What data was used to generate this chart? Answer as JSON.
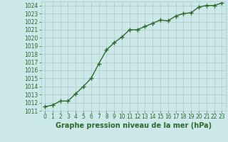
{
  "x": [
    0,
    1,
    2,
    3,
    4,
    5,
    6,
    7,
    8,
    9,
    10,
    11,
    12,
    13,
    14,
    15,
    16,
    17,
    18,
    19,
    20,
    21,
    22,
    23
  ],
  "y": [
    1011.5,
    1011.7,
    1012.2,
    1012.2,
    1013.1,
    1014.0,
    1015.0,
    1016.8,
    1018.5,
    1019.4,
    1020.1,
    1021.0,
    1021.0,
    1021.4,
    1021.8,
    1022.2,
    1022.1,
    1022.7,
    1023.0,
    1023.1,
    1023.8,
    1024.0,
    1024.0,
    1024.3
  ],
  "ylim_min": 1011,
  "ylim_max": 1024.5,
  "xlim_min": -0.5,
  "xlim_max": 23.5,
  "yticks": [
    1011,
    1012,
    1013,
    1014,
    1015,
    1016,
    1017,
    1018,
    1019,
    1020,
    1021,
    1022,
    1023,
    1024
  ],
  "xticks": [
    0,
    1,
    2,
    3,
    4,
    5,
    6,
    7,
    8,
    9,
    10,
    11,
    12,
    13,
    14,
    15,
    16,
    17,
    18,
    19,
    20,
    21,
    22,
    23
  ],
  "line_color": "#2d6a2d",
  "marker": "+",
  "marker_size": 4,
  "marker_edge_width": 1.0,
  "bg_color": "#cce8e8",
  "grid_color": "#aacccc",
  "xlabel": "Graphe pression niveau de la mer (hPa)",
  "xlabel_fontsize": 7,
  "tick_fontsize": 5.5,
  "line_width": 1.0
}
